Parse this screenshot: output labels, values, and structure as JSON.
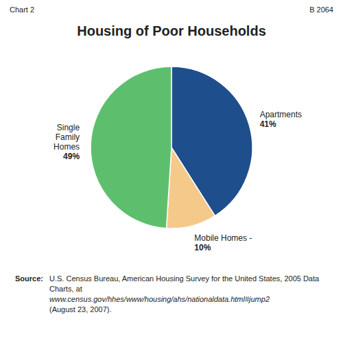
{
  "chart_data": {
    "type": "pie",
    "title": "Housing of Poor Households",
    "categories": [
      "Apartments",
      "Mobile Homes -",
      "Single\nFamily\nHomes"
    ],
    "values": [
      41,
      10,
      49
    ],
    "value_labels": [
      "41%",
      "10%",
      "49%"
    ],
    "colors": [
      "#1f4e8c",
      "#f5c98a",
      "#5dbf6e"
    ],
    "annotations": [
      "Chart 2",
      "B 2064",
      "Source:",
      "U.S. Census Bureau, American Housing Survey for the United States, 2005 Data Charts, at",
      "www.census.gov/hhes/www/housing/ahs/nationaldata.html#jump2",
      "(August 23, 2007)."
    ]
  }
}
